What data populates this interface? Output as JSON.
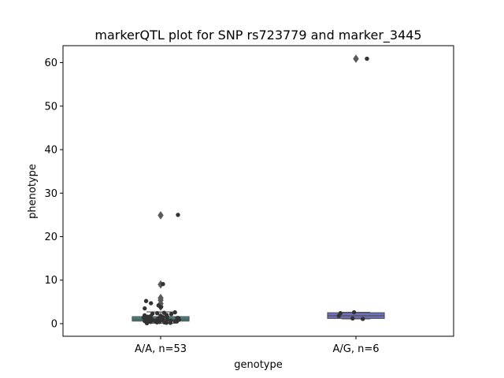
{
  "chart_data": {
    "type": "box+strip",
    "title": "markerQTL plot for SNP rs723779 and marker_3445",
    "xlabel": "genotype",
    "ylabel": "phenotype",
    "categories": [
      "A/A, n=53",
      "A/G, n=6"
    ],
    "ylim": [
      -2.9,
      63.9
    ],
    "yticks": [
      0,
      10,
      20,
      30,
      40,
      50,
      60
    ],
    "grid": false,
    "legend": "none",
    "colors": {
      "box_AA": "#3f8a8a",
      "box_AG": "#6f6fc8",
      "points": "#333333",
      "median": "#555555",
      "outlier": "#5a5a5a"
    },
    "boxes": [
      {
        "category": "A/A, n=53",
        "q1": 0.6,
        "median": 1.0,
        "q3": 1.6,
        "whisker_low": 0.1,
        "whisker_high": 2.7,
        "outliers": [
          3.9,
          4.6,
          5.4,
          5.9,
          9.0,
          24.9
        ]
      },
      {
        "category": "A/G, n=6",
        "q1": 1.2,
        "median": 1.8,
        "q3": 2.5,
        "whisker_low": 1.1,
        "whisker_high": 2.6,
        "outliers": [
          60.9
        ]
      }
    ],
    "points": [
      {
        "category": "A/A, n=53",
        "values": [
          25.0,
          9.1,
          5.2,
          4.7,
          4.2,
          3.8,
          3.5,
          2.6,
          2.5,
          2.4,
          2.3,
          2.2,
          2.0,
          1.9,
          1.8,
          1.7,
          1.6,
          1.6,
          1.5,
          1.5,
          1.4,
          1.4,
          1.3,
          1.3,
          1.2,
          1.2,
          1.1,
          1.1,
          1.0,
          1.0,
          1.0,
          0.9,
          0.9,
          0.9,
          0.8,
          0.8,
          0.8,
          0.7,
          0.7,
          0.7,
          0.6,
          0.6,
          0.6,
          0.5,
          0.5,
          0.5,
          0.4,
          0.4,
          0.3,
          0.3,
          0.2,
          0.2,
          0.1
        ]
      },
      {
        "category": "A/G, n=6",
        "values": [
          60.9,
          2.6,
          2.4,
          1.8,
          1.2,
          1.1
        ]
      }
    ]
  }
}
